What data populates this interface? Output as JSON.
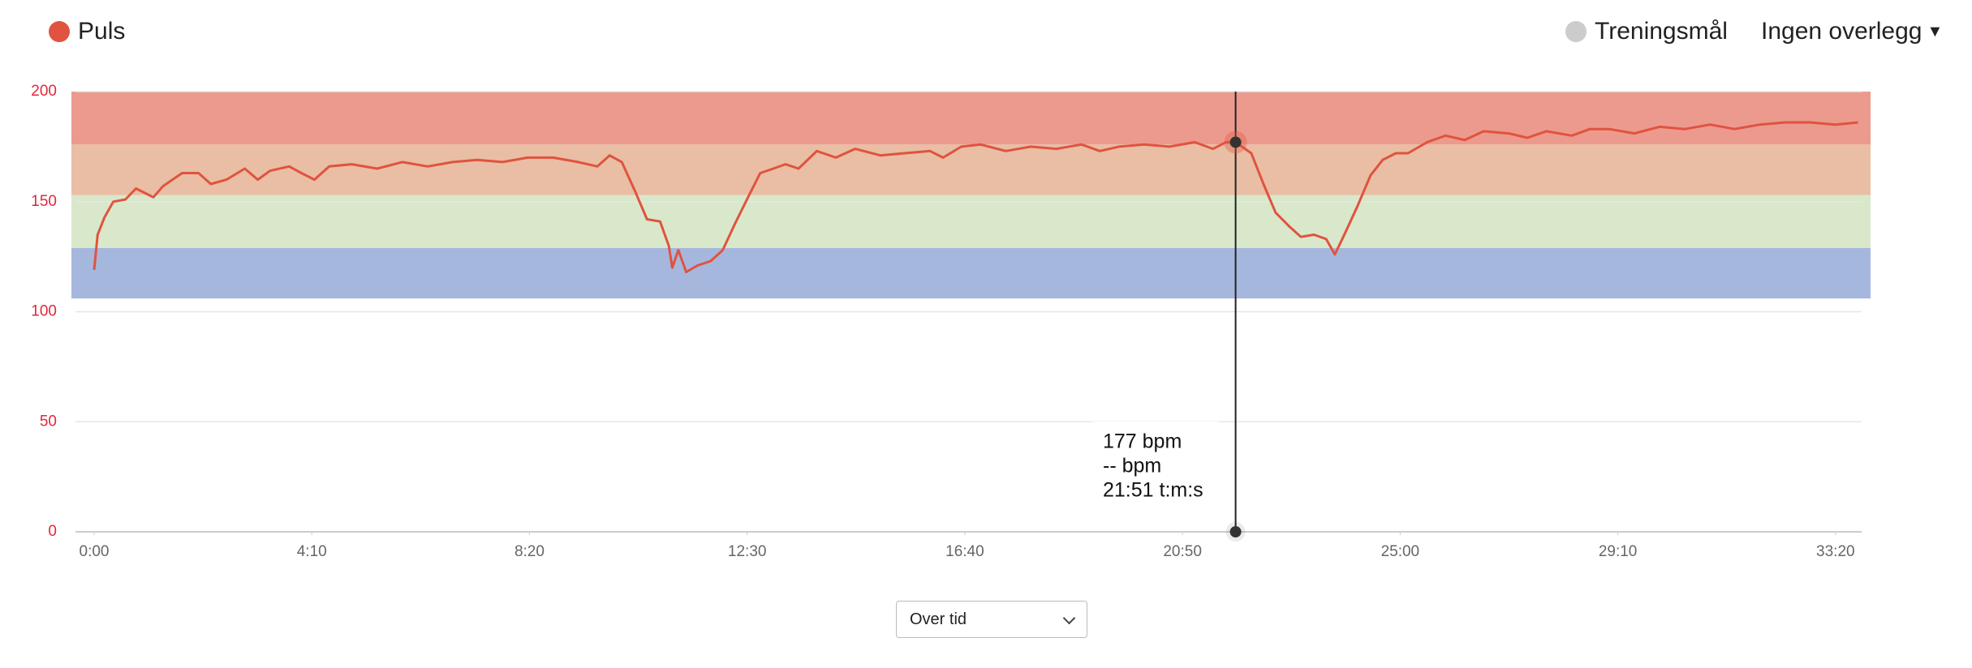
{
  "chart_data": {
    "type": "line",
    "legend": "Puls",
    "overlay_legend": "Treningsmål",
    "overlay_menu": "Ingen overlegg",
    "view_select": "Over tid",
    "xlim": [
      0,
      2030
    ],
    "ylim": [
      0,
      200
    ],
    "xticks": [
      {
        "value": 0,
        "label": "0:00"
      },
      {
        "value": 250,
        "label": "4:10"
      },
      {
        "value": 500,
        "label": "8:20"
      },
      {
        "value": 750,
        "label": "12:30"
      },
      {
        "value": 1000,
        "label": "16:40"
      },
      {
        "value": 1250,
        "label": "20:50"
      },
      {
        "value": 1500,
        "label": "25:00"
      },
      {
        "value": 1750,
        "label": "29:10"
      },
      {
        "value": 2000,
        "label": "33:20"
      }
    ],
    "yticks": [
      0,
      50,
      100,
      150,
      200
    ],
    "grid": true,
    "zones": [
      {
        "from": 106,
        "to": 129,
        "color": "#a6b7de"
      },
      {
        "from": 129,
        "to": 153,
        "color": "#d9e8cb"
      },
      {
        "from": 153,
        "to": 176,
        "color": "#e9bea4"
      },
      {
        "from": 176,
        "to": 200,
        "color": "#ec9a8e"
      }
    ],
    "series": [
      {
        "name": "Puls",
        "color": "#e0533f",
        "x": [
          0,
          4,
          12,
          22,
          36,
          48,
          58,
          68,
          79,
          101,
          120,
          134,
          152,
          173,
          188,
          202,
          224,
          238,
          253,
          270,
          296,
          325,
          354,
          383,
          412,
          440,
          469,
          498,
          527,
          556,
          578,
          592,
          606,
          621,
          635,
          650,
          660,
          664,
          671,
          680,
          693,
          708,
          722,
          736,
          751,
          765,
          780,
          794,
          809,
          830,
          852,
          874,
          903,
          931,
          960,
          975,
          996,
          1018,
          1047,
          1076,
          1105,
          1134,
          1155,
          1177,
          1206,
          1235,
          1264,
          1285,
          1300,
          1311,
          1329,
          1343,
          1357,
          1372,
          1386,
          1401,
          1415,
          1425,
          1437,
          1451,
          1466,
          1480,
          1495,
          1509,
          1531,
          1552,
          1574,
          1596,
          1625,
          1646,
          1668,
          1697,
          1718,
          1740,
          1769,
          1798,
          1827,
          1856,
          1884,
          1913,
          1942,
          1971,
          2000,
          2026
        ],
        "values": [
          119,
          135,
          143,
          150,
          151,
          156,
          154,
          152,
          157,
          163,
          163,
          158,
          160,
          165,
          160,
          164,
          166,
          163,
          160,
          166,
          167,
          165,
          168,
          166,
          168,
          169,
          168,
          170,
          170,
          168,
          166,
          171,
          168,
          155,
          142,
          141,
          130,
          120,
          128,
          118,
          121,
          123,
          128,
          140,
          152,
          163,
          165,
          167,
          165,
          173,
          170,
          174,
          171,
          172,
          173,
          170,
          175,
          176,
          173,
          175,
          174,
          176,
          173,
          175,
          176,
          175,
          177,
          174,
          177,
          177,
          172,
          158,
          145,
          139,
          134,
          135,
          133,
          126,
          136,
          148,
          162,
          169,
          172,
          172,
          177,
          180,
          178,
          182,
          181,
          179,
          182,
          180,
          183,
          183,
          181,
          184,
          183,
          185,
          183,
          185,
          186,
          186,
          185,
          186
        ]
      }
    ],
    "cursor": {
      "x": 1311,
      "value": 177,
      "lines": [
        "177 bpm",
        "-- bpm",
        "21:51 t:m:s"
      ]
    }
  }
}
